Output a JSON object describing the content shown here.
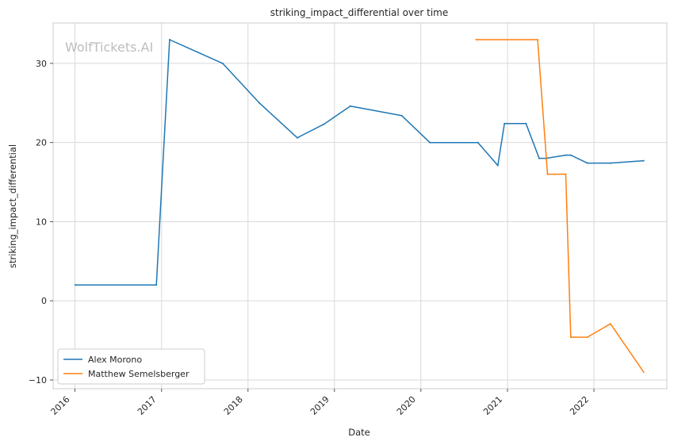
{
  "chart_data": {
    "type": "line",
    "title": "striking_impact_differential over time",
    "xlabel": "Date",
    "ylabel": "striking_impact_differential",
    "watermark": "WolfTickets.AI",
    "grid": true,
    "legend_position": "lower-left",
    "x_ticks": [
      "2016",
      "2017",
      "2018",
      "2019",
      "2020",
      "2021",
      "2022"
    ],
    "y_ticks": [
      -10,
      0,
      10,
      20,
      30
    ],
    "xlim": [
      "2015-10-01",
      "2022-11-05"
    ],
    "ylim": [
      -11.1,
      35.1
    ],
    "series": [
      {
        "name": "Alex Morono",
        "color": "#1f77b4",
        "points": [
          {
            "x": "2016-01-02",
            "y": 2.0
          },
          {
            "x": "2016-12-10",
            "y": 2.0
          },
          {
            "x": "2017-02-04",
            "y": 33.0
          },
          {
            "x": "2017-09-16",
            "y": 30.0
          },
          {
            "x": "2018-02-18",
            "y": 25.0
          },
          {
            "x": "2018-07-28",
            "y": 20.6
          },
          {
            "x": "2018-11-17",
            "y": 22.3
          },
          {
            "x": "2019-03-09",
            "y": 24.6
          },
          {
            "x": "2019-10-12",
            "y": 23.4
          },
          {
            "x": "2020-02-08",
            "y": 20.0
          },
          {
            "x": "2020-08-29",
            "y": 20.0
          },
          {
            "x": "2020-11-21",
            "y": 17.1
          },
          {
            "x": "2020-12-19",
            "y": 22.4
          },
          {
            "x": "2021-03-20",
            "y": 22.4
          },
          {
            "x": "2021-05-15",
            "y": 18.0
          },
          {
            "x": "2021-06-12",
            "y": 18.0
          },
          {
            "x": "2021-09-04",
            "y": 18.4
          },
          {
            "x": "2021-09-25",
            "y": 18.4
          },
          {
            "x": "2021-12-04",
            "y": 17.4
          },
          {
            "x": "2022-03-12",
            "y": 17.4
          },
          {
            "x": "2022-07-30",
            "y": 17.7
          }
        ]
      },
      {
        "name": "Matthew Semelsberger",
        "color": "#ff7f0e",
        "points": [
          {
            "x": "2020-08-22",
            "y": 33.0
          },
          {
            "x": "2021-05-08",
            "y": 33.0
          },
          {
            "x": "2021-06-19",
            "y": 16.0
          },
          {
            "x": "2021-09-04",
            "y": 16.0
          },
          {
            "x": "2021-09-25",
            "y": -4.6
          },
          {
            "x": "2021-12-04",
            "y": -4.6
          },
          {
            "x": "2022-03-12",
            "y": -2.9
          },
          {
            "x": "2022-07-30",
            "y": -9.0
          }
        ]
      }
    ]
  }
}
